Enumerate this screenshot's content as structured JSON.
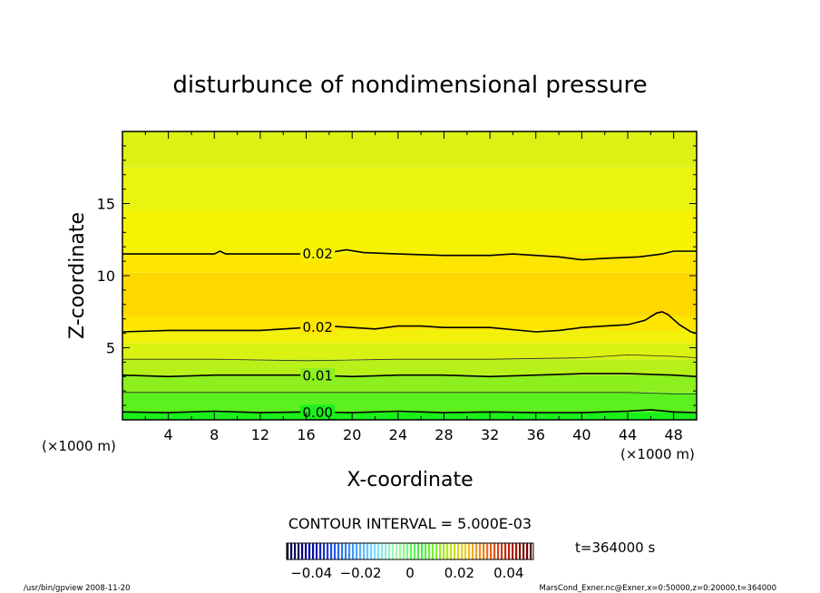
{
  "chart_data": {
    "type": "contour",
    "title": "disturbunce of nondimensional pressure",
    "xlabel": "X-coordinate",
    "ylabel": "Z-coordinate",
    "x_unit_left": "(×1000 m)",
    "x_unit_right": "(×1000 m)",
    "xlim": [
      0,
      50
    ],
    "ylim": [
      0,
      20
    ],
    "x_ticks": [
      4,
      8,
      12,
      16,
      20,
      24,
      28,
      32,
      36,
      40,
      44,
      48
    ],
    "y_ticks": [
      5,
      10,
      15
    ],
    "contour_lines": [
      {
        "label": "0.02",
        "points": [
          [
            0,
            11.5
          ],
          [
            5,
            11.5
          ],
          [
            8,
            11.5
          ],
          [
            8.5,
            11.7
          ],
          [
            9,
            11.5
          ],
          [
            12,
            11.5
          ],
          [
            16,
            11.5
          ],
          [
            18,
            11.6
          ],
          [
            19.5,
            11.8
          ],
          [
            21,
            11.6
          ],
          [
            24,
            11.5
          ],
          [
            28,
            11.4
          ],
          [
            32,
            11.4
          ],
          [
            34,
            11.5
          ],
          [
            36,
            11.4
          ],
          [
            38,
            11.3
          ],
          [
            40,
            11.1
          ],
          [
            42,
            11.2
          ],
          [
            45,
            11.3
          ],
          [
            47,
            11.5
          ],
          [
            48,
            11.7
          ],
          [
            50,
            11.7
          ]
        ]
      },
      {
        "label": "0.02",
        "points": [
          [
            0,
            6.1
          ],
          [
            4,
            6.2
          ],
          [
            8,
            6.2
          ],
          [
            12,
            6.2
          ],
          [
            16,
            6.4
          ],
          [
            18,
            6.5
          ],
          [
            20,
            6.4
          ],
          [
            22,
            6.3
          ],
          [
            24,
            6.5
          ],
          [
            26,
            6.5
          ],
          [
            28,
            6.4
          ],
          [
            32,
            6.4
          ],
          [
            36,
            6.1
          ],
          [
            38,
            6.2
          ],
          [
            40,
            6.4
          ],
          [
            42,
            6.5
          ],
          [
            44,
            6.6
          ],
          [
            45.5,
            6.9
          ],
          [
            46.5,
            7.4
          ],
          [
            47,
            7.5
          ],
          [
            47.5,
            7.3
          ],
          [
            48.5,
            6.6
          ],
          [
            49.5,
            6.1
          ],
          [
            50,
            6.0
          ]
        ]
      },
      {
        "label": "0.01",
        "points": [
          [
            0,
            3.1
          ],
          [
            4,
            3.0
          ],
          [
            8,
            3.1
          ],
          [
            12,
            3.1
          ],
          [
            16,
            3.1
          ],
          [
            20,
            3.0
          ],
          [
            24,
            3.1
          ],
          [
            28,
            3.1
          ],
          [
            32,
            3.0
          ],
          [
            36,
            3.1
          ],
          [
            40,
            3.2
          ],
          [
            44,
            3.2
          ],
          [
            48,
            3.1
          ],
          [
            50,
            3.0
          ]
        ]
      },
      {
        "label": "0.00",
        "points": [
          [
            0,
            0.55
          ],
          [
            4,
            0.5
          ],
          [
            8,
            0.6
          ],
          [
            12,
            0.5
          ],
          [
            16,
            0.55
          ],
          [
            20,
            0.5
          ],
          [
            24,
            0.6
          ],
          [
            28,
            0.5
          ],
          [
            32,
            0.55
          ],
          [
            36,
            0.5
          ],
          [
            40,
            0.5
          ],
          [
            44,
            0.6
          ],
          [
            46,
            0.7
          ],
          [
            48,
            0.55
          ],
          [
            50,
            0.5
          ]
        ]
      }
    ],
    "minor_contours": [
      {
        "points": [
          [
            0,
            4.2
          ],
          [
            8,
            4.2
          ],
          [
            16,
            4.1
          ],
          [
            24,
            4.2
          ],
          [
            32,
            4.2
          ],
          [
            40,
            4.3
          ],
          [
            44,
            4.5
          ],
          [
            48,
            4.4
          ],
          [
            50,
            4.3
          ]
        ]
      },
      {
        "points": [
          [
            0,
            1.9
          ],
          [
            8,
            1.9
          ],
          [
            16,
            1.9
          ],
          [
            24,
            1.9
          ],
          [
            32,
            1.9
          ],
          [
            40,
            1.9
          ],
          [
            44,
            1.9
          ],
          [
            48,
            1.8
          ],
          [
            50,
            1.8
          ]
        ]
      }
    ],
    "color_bands": [
      {
        "z0": 0,
        "z1": 0.55,
        "color": "#1af01a"
      },
      {
        "z0": 0.55,
        "z1": 1.9,
        "color": "#5cf01e"
      },
      {
        "z0": 1.9,
        "z1": 3.1,
        "color": "#8cef1e"
      },
      {
        "z0": 3.1,
        "z1": 4.2,
        "color": "#b8f01a"
      },
      {
        "z0": 4.2,
        "z1": 5.3,
        "color": "#d9f212"
      },
      {
        "z0": 5.3,
        "z1": 6.2,
        "color": "#f1f10a"
      },
      {
        "z0": 6.2,
        "z1": 7.2,
        "color": "#ffe600"
      },
      {
        "z0": 7.2,
        "z1": 10.2,
        "color": "#ffd800"
      },
      {
        "z0": 10.2,
        "z1": 11.5,
        "color": "#ffe600"
      },
      {
        "z0": 11.5,
        "z1": 14.5,
        "color": "#f7f204"
      },
      {
        "z0": 14.5,
        "z1": 17.5,
        "color": "#eaf40e"
      },
      {
        "z0": 17.5,
        "z1": 20,
        "color": "#ddf214"
      }
    ],
    "contour_interval_text": "CONTOUR INTERVAL = 5.000E-03",
    "colorbar": {
      "min": -0.05,
      "max": 0.05,
      "tick_values": [
        -0.04,
        -0.02,
        0,
        0.02,
        0.04
      ],
      "tick_labels": [
        "−0.04",
        "−0.02",
        "0",
        "0.02",
        "0.04"
      ],
      "colors": [
        "#000030",
        "#0000a0",
        "#2050e0",
        "#40a0ff",
        "#80e0ff",
        "#a0ffa0",
        "#40f040",
        "#a0f020",
        "#f0d020",
        "#f07020",
        "#c02010",
        "#600000"
      ]
    },
    "time_text": "t=364000 s"
  },
  "footer": {
    "left": "/usr/bin/gpview   2008-11-20",
    "right": "MarsCond_Exner.nc@Exner,x=0:50000,z=0:20000,t=364000"
  }
}
